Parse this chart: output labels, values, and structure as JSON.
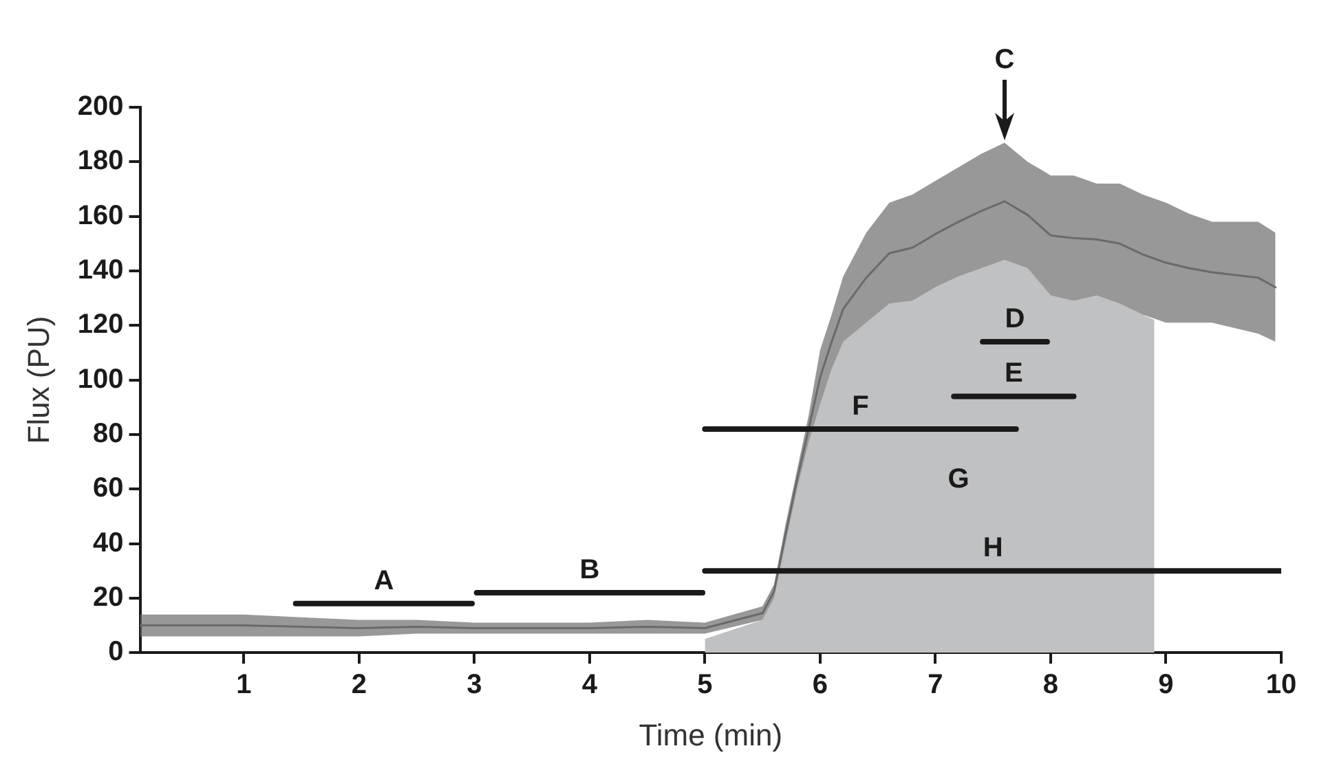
{
  "chart_data": {
    "type": "line",
    "xlabel": "Time (min)",
    "ylabel": "Flux (PU)",
    "xlim": [
      0.1,
      10
    ],
    "xticks": [
      1,
      2,
      3,
      4,
      5,
      6,
      7,
      8,
      9,
      10
    ],
    "ylim": [
      0,
      200
    ],
    "yticks": [
      0,
      20,
      40,
      60,
      80,
      100,
      120,
      140,
      160,
      180,
      200
    ],
    "grid": false,
    "legend": false,
    "marker": "none",
    "series": [
      {
        "type": "area",
        "color": "#c0c1c3",
        "x": [
          5.0,
          5.5,
          5.6,
          5.7,
          5.8,
          5.9,
          6.0,
          6.1,
          6.2,
          6.4,
          6.6,
          6.8,
          7.0,
          7.2,
          7.4,
          7.6,
          7.8,
          8.0,
          8.2,
          8.4,
          8.6,
          8.8,
          8.9
        ],
        "values": [
          5,
          12,
          20,
          40,
          60,
          77,
          91,
          104,
          114,
          121,
          128,
          129,
          134,
          138,
          141,
          144,
          141,
          131,
          129,
          131,
          128,
          124,
          122
        ]
      },
      {
        "type": "line",
        "color": "#6a6a6a",
        "x": [
          0.1,
          0.5,
          1,
          1.5,
          2,
          2.5,
          3,
          3.5,
          4,
          4.5,
          5,
          5.5,
          5.6,
          5.7,
          5.8,
          5.9,
          6.0,
          6.1,
          6.2,
          6.4,
          6.6,
          6.8,
          7.0,
          7.2,
          7.4,
          7.6,
          7.8,
          8.0,
          8.2,
          8.4,
          8.6,
          8.8,
          9.0,
          9.2,
          9.4,
          9.6,
          9.8,
          9.95
        ],
        "values": [
          10,
          10,
          10,
          9.5,
          9,
          9.5,
          9,
          9,
          9,
          9.5,
          9,
          14.5,
          22.5,
          43.5,
          63.5,
          82,
          101,
          114,
          126,
          137.5,
          146.5,
          148.5,
          153.5,
          158,
          162,
          165.5,
          160.5,
          153,
          152,
          151.5,
          150,
          146,
          143,
          141,
          139.5,
          138.5,
          137.5,
          134
        ],
        "lower": [
          6,
          6,
          6,
          6,
          6,
          7,
          7,
          7,
          7,
          7,
          7,
          12,
          20,
          40,
          60,
          77,
          91,
          104,
          114,
          121,
          128,
          129,
          134,
          138,
          141,
          144,
          141,
          131,
          129,
          131,
          128,
          124,
          121,
          121,
          121,
          119,
          117,
          114
        ],
        "upper": [
          14,
          14,
          14,
          13,
          12,
          12,
          11,
          11,
          11,
          12,
          11,
          17,
          25,
          47,
          67,
          87,
          111,
          124,
          138,
          154,
          165,
          168,
          173,
          178,
          183,
          187,
          180,
          175,
          175,
          172,
          172,
          168,
          165,
          161,
          158,
          158,
          158,
          154
        ]
      },
      {
        "type": "line",
        "name": "A",
        "color": "#1a1a1a",
        "x": [
          1.45,
          2.98
        ],
        "values": [
          18,
          18
        ]
      },
      {
        "type": "line",
        "name": "B",
        "color": "#1a1a1a",
        "x": [
          3.02,
          4.98
        ],
        "values": [
          22,
          22
        ]
      },
      {
        "type": "line",
        "name": "D",
        "color": "#1a1a1a",
        "x": [
          7.41,
          7.97
        ],
        "values": [
          114,
          114
        ]
      },
      {
        "type": "line",
        "name": "E",
        "color": "#1a1a1a",
        "x": [
          7.16,
          8.2
        ],
        "values": [
          94,
          94
        ]
      },
      {
        "type": "line",
        "name": "F",
        "color": "#1a1a1a",
        "x": [
          5.0,
          7.7
        ],
        "values": [
          82,
          82
        ]
      },
      {
        "type": "line",
        "name": "H",
        "color": "#1a1a1a",
        "x": [
          5.0,
          10.0
        ],
        "values": [
          30,
          30
        ]
      }
    ],
    "annotations": [
      {
        "text": "C",
        "x": 7.6,
        "y": 187
      },
      "G"
    ]
  }
}
